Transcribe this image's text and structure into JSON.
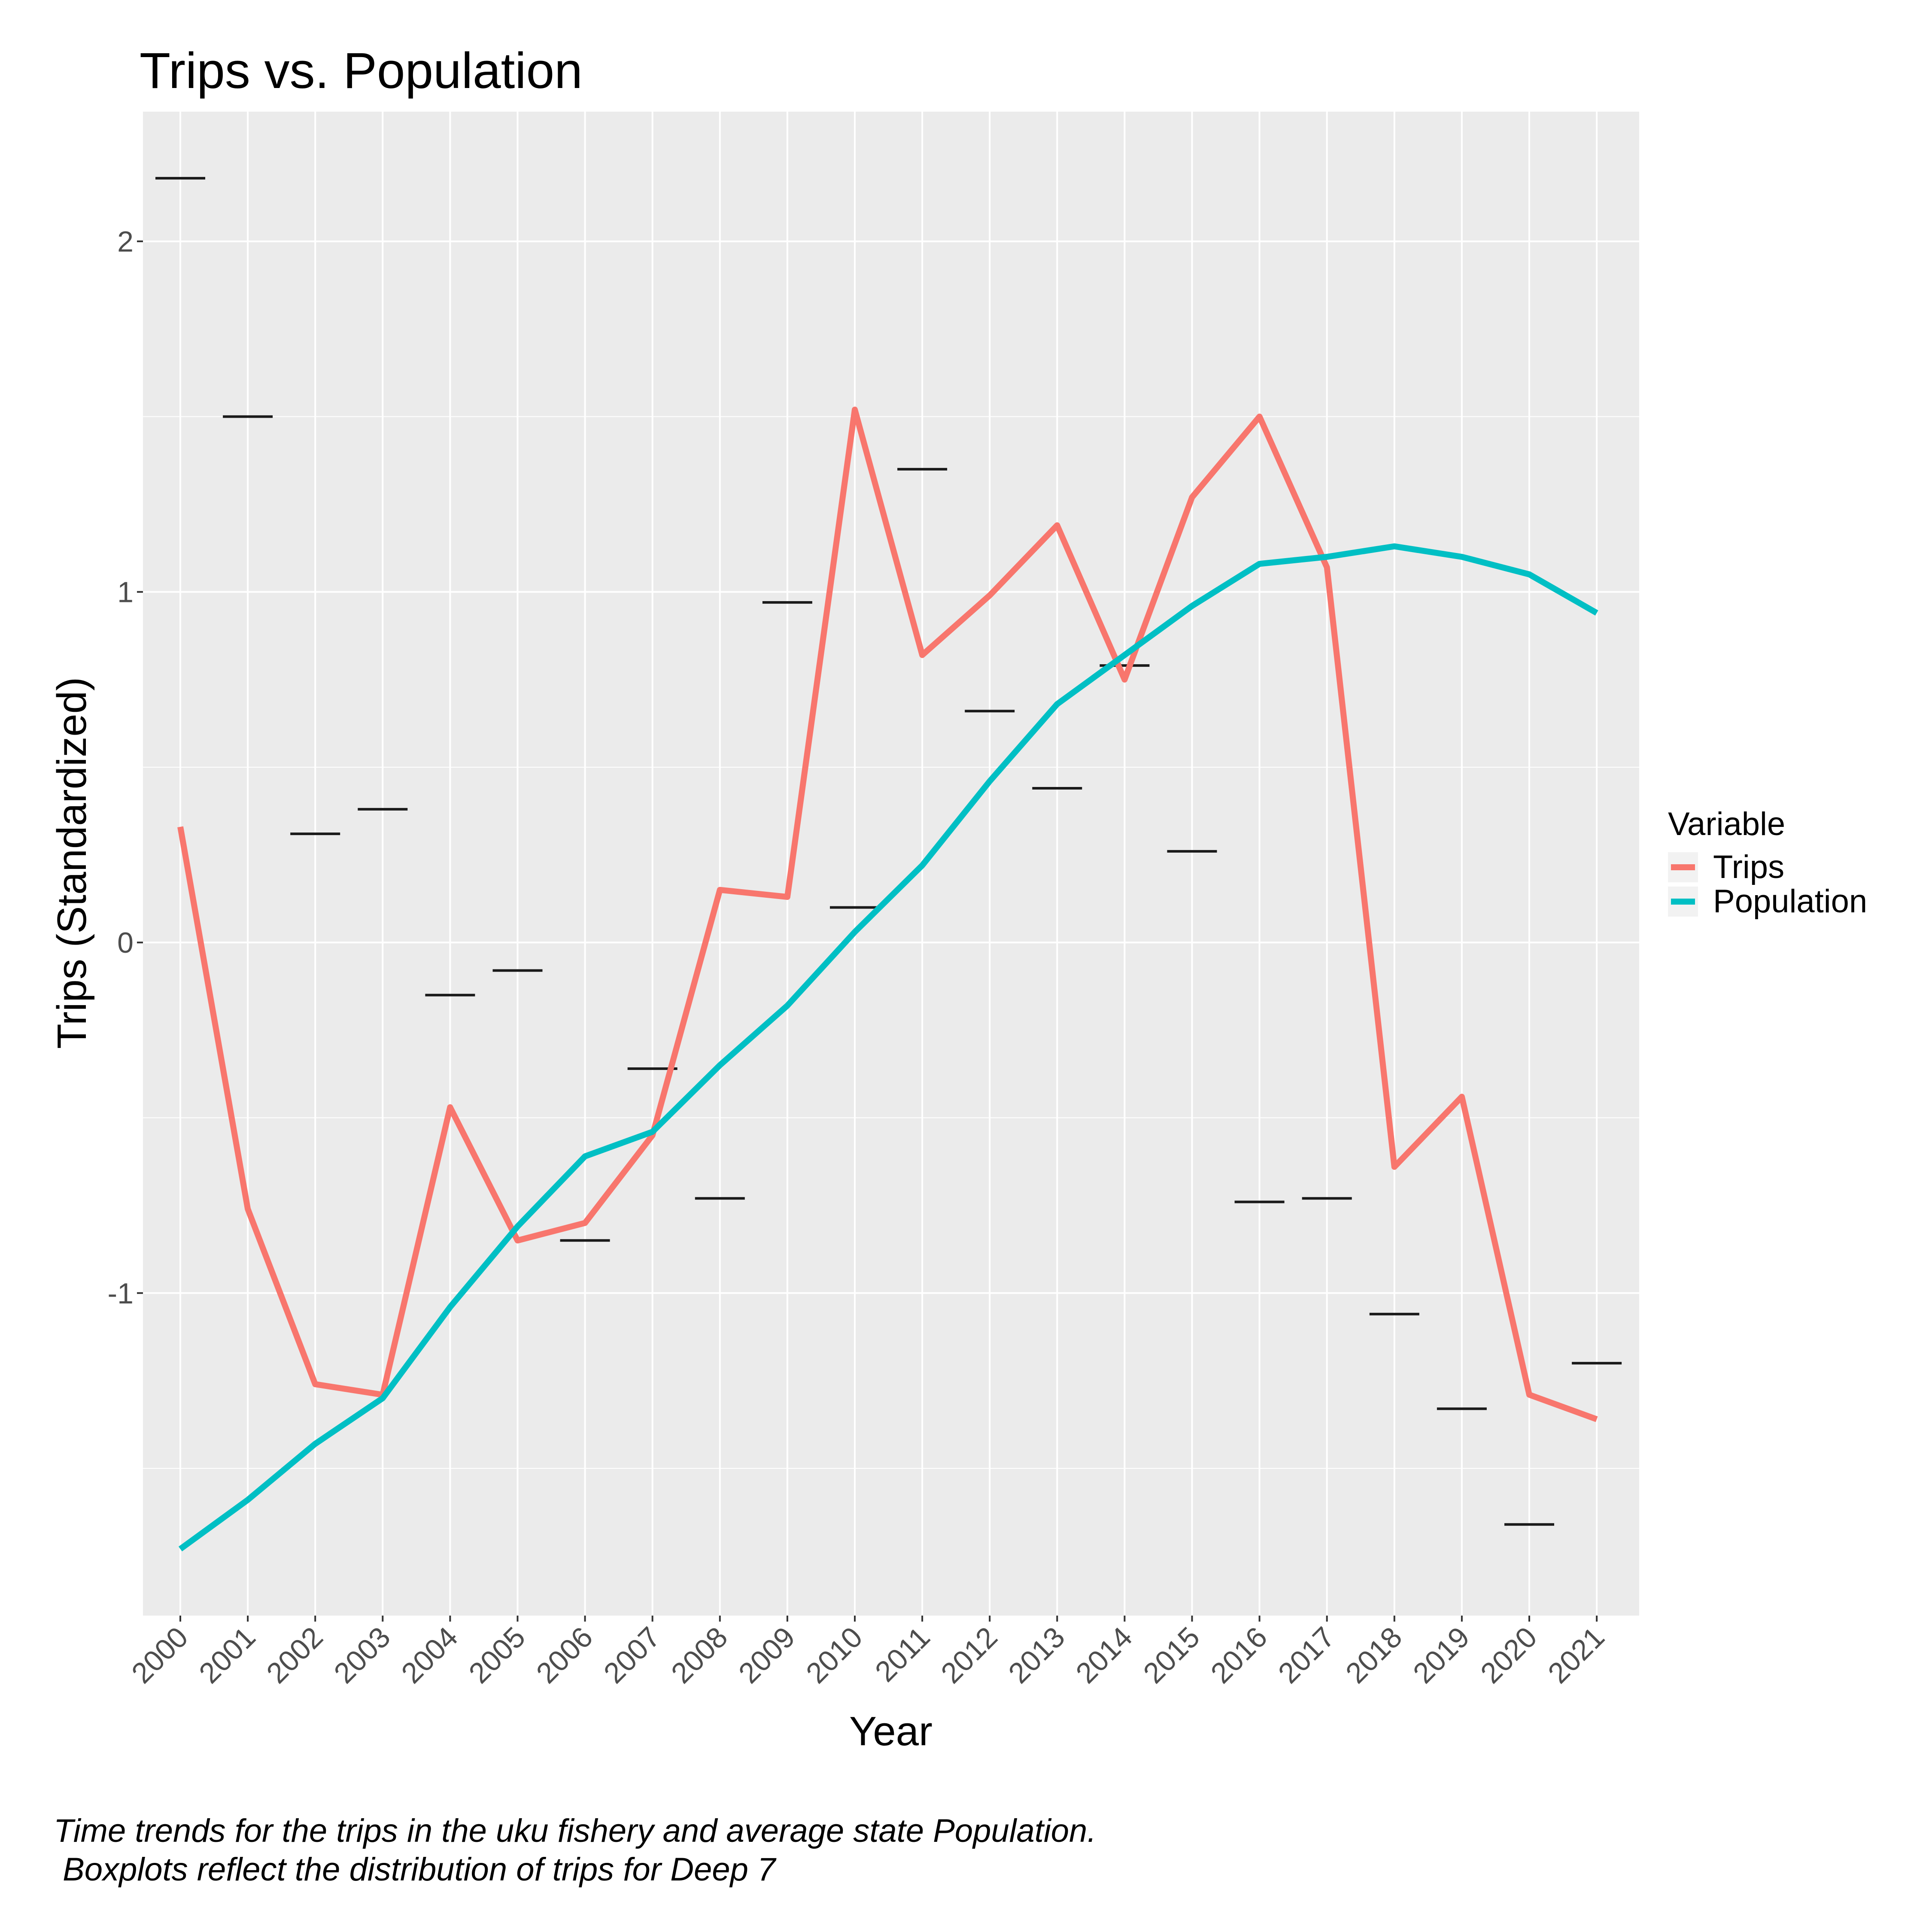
{
  "chart_data": {
    "type": "line",
    "title": "Trips vs. Population",
    "xlabel": "Year",
    "ylabel": "Trips (Standardized)",
    "categories": [
      "2000",
      "2001",
      "2002",
      "2003",
      "2004",
      "2005",
      "2006",
      "2007",
      "2008",
      "2009",
      "2010",
      "2011",
      "2012",
      "2013",
      "2014",
      "2015",
      "2016",
      "2017",
      "2018",
      "2019",
      "2020",
      "2021"
    ],
    "series": [
      {
        "name": "Trips",
        "color": "#F8766D",
        "values": [
          0.33,
          -0.76,
          -1.26,
          -1.29,
          -0.47,
          -0.85,
          -0.8,
          -0.55,
          0.15,
          0.13,
          1.52,
          0.82,
          0.99,
          1.19,
          0.75,
          1.27,
          1.5,
          1.07,
          -0.64,
          -0.44,
          -1.29,
          -1.36
        ]
      },
      {
        "name": "Population",
        "color": "#00BFC4",
        "values": [
          -1.73,
          -1.59,
          -1.43,
          -1.3,
          -1.04,
          -0.81,
          -0.61,
          -0.54,
          -0.35,
          -0.18,
          0.03,
          0.22,
          0.46,
          0.68,
          0.82,
          0.96,
          1.08,
          1.1,
          1.13,
          1.1,
          1.05,
          0.94
        ]
      }
    ],
    "medians": [
      2.18,
      1.5,
      0.31,
      0.38,
      -0.15,
      -0.08,
      -0.85,
      -0.36,
      -0.73,
      0.97,
      0.1,
      1.35,
      0.66,
      0.44,
      0.79,
      0.26,
      -0.74,
      -0.73,
      -1.06,
      -1.33,
      -1.66,
      -1.2
    ],
    "ylim": [
      -1.92,
      2.37
    ],
    "yticks": [
      -1,
      0,
      1,
      2
    ],
    "grid": true,
    "legend": {
      "title": "Variable",
      "position": "right"
    },
    "caption": [
      "Time trends for the trips in the uku fishery and average state Population.",
      " Boxplots reflect the distribution of trips for Deep 7"
    ]
  }
}
